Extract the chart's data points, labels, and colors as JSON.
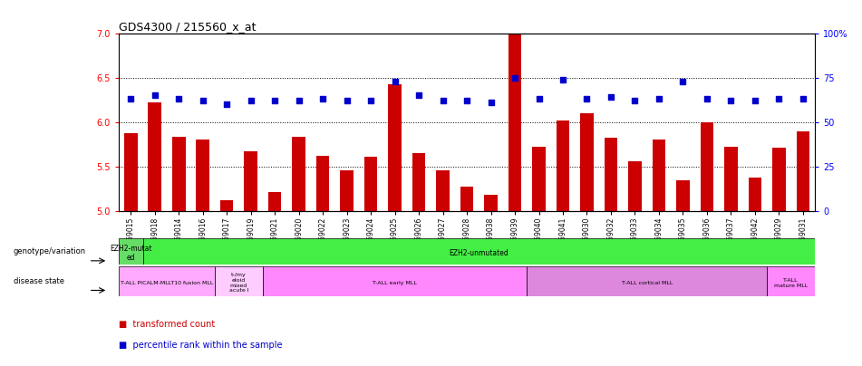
{
  "title": "GDS4300 / 215560_x_at",
  "samples": [
    "GSM759015",
    "GSM759018",
    "GSM759014",
    "GSM759016",
    "GSM759017",
    "GSM759019",
    "GSM759021",
    "GSM759020",
    "GSM759022",
    "GSM759023",
    "GSM759024",
    "GSM759025",
    "GSM759026",
    "GSM759027",
    "GSM759028",
    "GSM759038",
    "GSM759039",
    "GSM759040",
    "GSM759041",
    "GSM759030",
    "GSM759032",
    "GSM759033",
    "GSM759034",
    "GSM759035",
    "GSM759036",
    "GSM759037",
    "GSM759042",
    "GSM759029",
    "GSM759031"
  ],
  "bar_values": [
    5.88,
    6.22,
    5.83,
    5.8,
    5.12,
    5.67,
    5.21,
    5.83,
    5.62,
    5.46,
    5.61,
    6.43,
    5.65,
    5.46,
    5.27,
    5.18,
    7.0,
    5.72,
    6.02,
    6.1,
    5.82,
    5.56,
    5.8,
    5.34,
    6.0,
    5.72,
    5.37,
    5.71,
    5.9
  ],
  "dot_values": [
    63,
    65,
    63,
    62,
    60,
    62,
    62,
    62,
    63,
    62,
    62,
    73,
    65,
    62,
    62,
    61,
    75,
    63,
    74,
    63,
    64,
    62,
    63,
    73,
    63,
    62,
    62,
    63,
    63
  ],
  "bar_color": "#cc0000",
  "dot_color": "#0000cc",
  "ylim_left": [
    5.0,
    7.0
  ],
  "ylim_right": [
    0,
    100
  ],
  "yticks_left": [
    5.0,
    5.5,
    6.0,
    6.5,
    7.0
  ],
  "yticks_right": [
    0,
    25,
    50,
    75,
    100
  ],
  "ytick_labels_right": [
    "0",
    "25",
    "50",
    "75",
    "100%"
  ],
  "hlines": [
    5.5,
    6.0,
    6.5
  ],
  "genotype_groups": [
    {
      "label": "EZH2-mutat\ned",
      "start": 0,
      "end": 1,
      "color": "#66dd66"
    },
    {
      "label": "EZH2-unmutated",
      "start": 1,
      "end": 29,
      "color": "#44ee44"
    }
  ],
  "disease_groups": [
    {
      "label": "T-ALL PICALM-MLLT10 fusion MLL",
      "start": 0,
      "end": 4,
      "color": "#ffaaff"
    },
    {
      "label": "t-/my\neloid\nmixed\nacute l",
      "start": 4,
      "end": 6,
      "color": "#ffccff"
    },
    {
      "label": "T-ALL early MLL",
      "start": 6,
      "end": 17,
      "color": "#ff88ff"
    },
    {
      "label": "T-ALL cortical MLL",
      "start": 17,
      "end": 27,
      "color": "#dd88dd"
    },
    {
      "label": "T-ALL\nmature MLL",
      "start": 27,
      "end": 29,
      "color": "#ff88ff"
    }
  ]
}
